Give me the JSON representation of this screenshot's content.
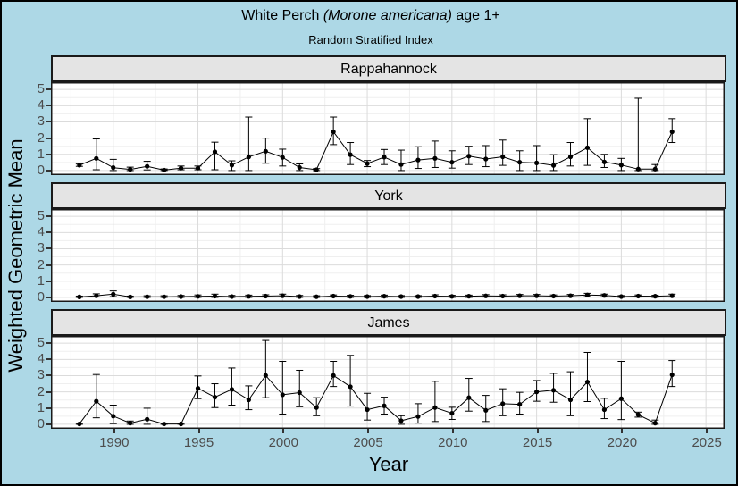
{
  "title": {
    "text_before_species": "White Perch ",
    "species_italic": "(Morone americana)",
    "text_after_species": " age 1+"
  },
  "subtitle": "Random Stratified Index",
  "axes": {
    "x_title": "Year",
    "y_title": "Weighted Geometric Mean",
    "x_tick_labels": [
      "1990",
      "1995",
      "2000",
      "2005",
      "2010",
      "2015",
      "2020",
      "2025"
    ],
    "y_tick_labels": [
      "5",
      "4",
      "3",
      "2",
      "1",
      "0"
    ]
  },
  "colors": {
    "outer_background": "#ADD8E6",
    "panel_background": "#FFFFFF",
    "strip_background": "#E4E4E4",
    "panel_border": "#1A1A1A",
    "grid_major": "#DBDBDB",
    "grid_minor": "#EFEFEF",
    "data": "#000000",
    "tick_text": "#4D4D4D"
  },
  "chart_data": {
    "type": "line",
    "title": "White Perch (Morone americana) age 1+",
    "subtitle": "Random Stratified Index",
    "xlabel": "Year",
    "ylabel": "Weighted Geometric Mean",
    "legend": "none",
    "grid": "major and minor light grey gridlines on white panels",
    "error_bars": "vertical CI bars with end caps",
    "facet_layout": "3 stacked panels sharing x axis",
    "x_ticks": [
      1990,
      1995,
      2000,
      2005,
      2010,
      2015,
      2020,
      2025
    ],
    "y_ticks": [
      0,
      1,
      2,
      3,
      4,
      5
    ],
    "x_display_range": [
      1986.32,
      2026.1
    ],
    "y_display_range": [
      -0.28,
      5.45
    ],
    "ylim": [
      0,
      5
    ],
    "years": [
      1988,
      1989,
      1990,
      1991,
      1992,
      1993,
      1994,
      1995,
      1996,
      1997,
      1998,
      1999,
      2000,
      2001,
      2002,
      2003,
      2004,
      2005,
      2006,
      2007,
      2008,
      2009,
      2010,
      2011,
      2012,
      2013,
      2014,
      2015,
      2016,
      2017,
      2018,
      2019,
      2020,
      2021,
      2022,
      2023
    ],
    "series": [
      {
        "name": "Rappahannock",
        "values": [
          0.33,
          0.75,
          0.18,
          0.07,
          0.26,
          0.03,
          0.15,
          0.15,
          1.16,
          0.33,
          0.84,
          1.19,
          0.81,
          0.19,
          0.05,
          2.39,
          0.98,
          0.43,
          0.83,
          0.37,
          0.65,
          0.75,
          0.51,
          0.89,
          0.71,
          0.85,
          0.51,
          0.47,
          0.32,
          0.85,
          1.41,
          0.53,
          0.34,
          0.09,
          0.09,
          2.39
        ],
        "ci_low": [
          0.26,
          0.05,
          0.0,
          0.0,
          0.04,
          0.0,
          0.05,
          0.05,
          0.05,
          0.0,
          0.0,
          0.45,
          0.28,
          0.0,
          0.0,
          1.6,
          0.37,
          0.24,
          0.37,
          0.0,
          0.13,
          0.19,
          0.15,
          0.37,
          0.24,
          0.32,
          0.0,
          0.0,
          0.0,
          0.28,
          0.32,
          0.19,
          0.0,
          0.0,
          0.0,
          1.73
        ],
        "ci_high": [
          0.4,
          1.95,
          0.69,
          0.21,
          0.57,
          0.1,
          0.28,
          0.28,
          1.75,
          0.6,
          3.3,
          2.0,
          1.32,
          0.41,
          0.12,
          3.3,
          1.73,
          0.62,
          1.3,
          1.26,
          1.47,
          1.82,
          1.22,
          1.5,
          1.54,
          1.88,
          1.22,
          1.54,
          0.98,
          1.73,
          3.2,
          1.0,
          0.75,
          4.46,
          0.37,
          3.2
        ]
      },
      {
        "name": "York",
        "values": [
          0.03,
          0.1,
          0.2,
          0.03,
          0.04,
          0.04,
          0.05,
          0.06,
          0.08,
          0.05,
          0.06,
          0.08,
          0.1,
          0.05,
          0.04,
          0.08,
          0.06,
          0.05,
          0.07,
          0.05,
          0.05,
          0.08,
          0.06,
          0.07,
          0.09,
          0.08,
          0.1,
          0.1,
          0.08,
          0.1,
          0.15,
          0.12,
          0.05,
          0.08,
          0.07,
          0.1
        ],
        "ci_low": [
          0.0,
          0.03,
          0.05,
          0.0,
          0.0,
          0.0,
          0.0,
          0.0,
          0.0,
          0.0,
          0.0,
          0.02,
          0.03,
          0.0,
          0.0,
          0.02,
          0.0,
          0.0,
          0.0,
          0.0,
          0.0,
          0.02,
          0.0,
          0.0,
          0.02,
          0.02,
          0.03,
          0.03,
          0.02,
          0.03,
          0.05,
          0.04,
          0.0,
          0.02,
          0.0,
          0.02
        ],
        "ci_high": [
          0.08,
          0.22,
          0.4,
          0.08,
          0.1,
          0.1,
          0.12,
          0.15,
          0.2,
          0.12,
          0.14,
          0.16,
          0.2,
          0.12,
          0.1,
          0.15,
          0.13,
          0.11,
          0.14,
          0.11,
          0.11,
          0.16,
          0.13,
          0.14,
          0.17,
          0.16,
          0.18,
          0.18,
          0.15,
          0.18,
          0.25,
          0.2,
          0.11,
          0.15,
          0.13,
          0.2
        ]
      },
      {
        "name": "James",
        "values": [
          0.02,
          1.42,
          0.5,
          0.07,
          0.31,
          0.02,
          0.02,
          2.22,
          1.67,
          2.15,
          1.51,
          3.01,
          1.82,
          1.95,
          1.03,
          3.01,
          2.32,
          0.9,
          1.14,
          0.22,
          0.48,
          1.03,
          0.68,
          1.64,
          0.86,
          1.27,
          1.23,
          2.0,
          2.1,
          1.51,
          2.61,
          0.9,
          1.58,
          0.59,
          0.07,
          3.05
        ],
        "ci_low": [
          0.0,
          0.4,
          0.04,
          0.0,
          0.0,
          0.0,
          0.0,
          1.58,
          1.03,
          1.18,
          0.9,
          1.64,
          0.63,
          1.08,
          0.53,
          2.33,
          1.12,
          0.26,
          0.63,
          0.0,
          0.07,
          0.17,
          0.3,
          0.81,
          0.17,
          0.53,
          0.63,
          1.42,
          1.36,
          0.53,
          1.4,
          0.35,
          0.29,
          0.44,
          0.0,
          2.33
        ],
        "ci_high": [
          0.06,
          3.07,
          1.18,
          0.2,
          0.99,
          0.06,
          0.06,
          2.98,
          2.5,
          3.47,
          2.37,
          5.17,
          3.88,
          3.33,
          1.64,
          3.88,
          4.25,
          1.91,
          1.67,
          0.53,
          1.27,
          2.65,
          1.05,
          2.83,
          1.78,
          2.19,
          1.97,
          2.7,
          3.14,
          3.24,
          4.43,
          1.6,
          3.88,
          0.75,
          0.26,
          3.93
        ]
      }
    ]
  }
}
